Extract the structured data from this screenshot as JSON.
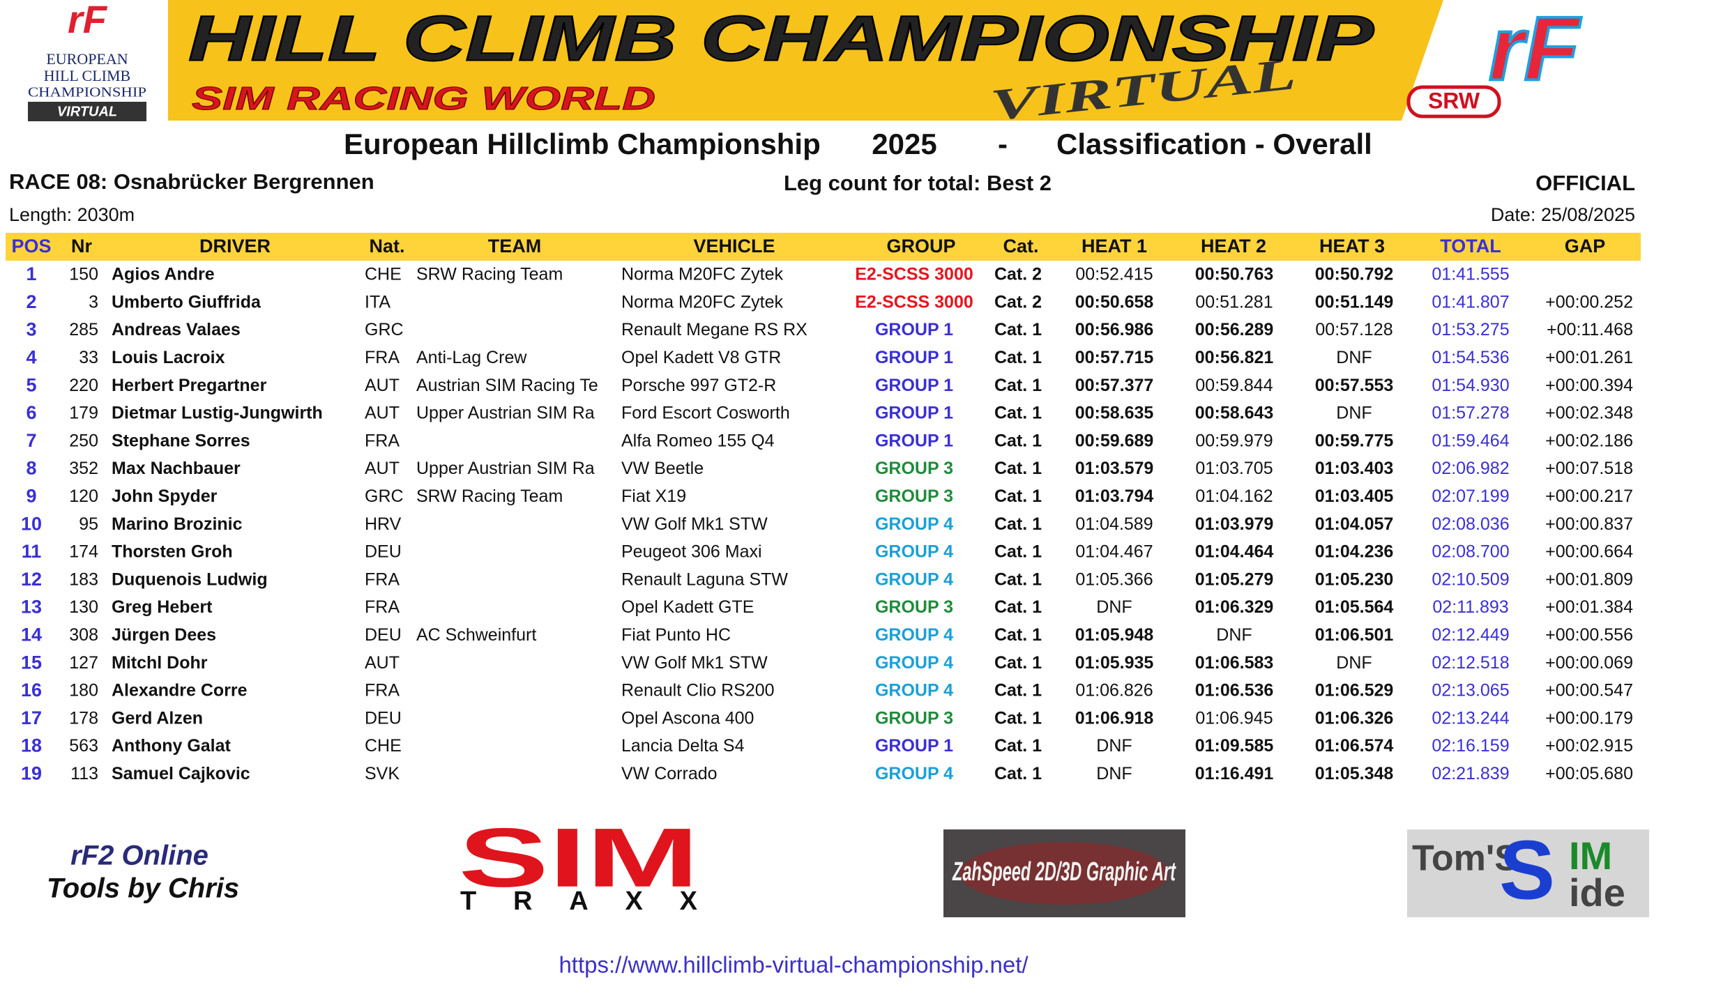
{
  "logos": {
    "left": {
      "mark": "rF",
      "lines": [
        "EUROPEAN",
        "HILL CLIMB",
        "CHAMPIONSHIP"
      ],
      "tag": "VIRTUAL"
    },
    "banner": {
      "title": "HILL CLIMB CHAMPIONSHIP",
      "subtitle": "SIM RACING WORLD",
      "tag": "VIRTUAL"
    },
    "right": {
      "mark": "rF",
      "tag": "SRW"
    }
  },
  "header": {
    "title": [
      "European Hillclimb Championship",
      "2025",
      "-",
      "Classification - Overall"
    ],
    "race": "RACE 08: Osnabrücker Bergrennen",
    "legs": "Leg count for total:  Best 2",
    "status": "OFFICIAL",
    "length": "Length: 2030m",
    "date": "Date: 25/08/2025"
  },
  "table": {
    "columns": [
      "POS",
      "Nr",
      "DRIVER",
      "Nat.",
      "TEAM",
      "VEHICLE",
      "GROUP",
      "Cat.",
      "HEAT 1",
      "HEAT 2",
      "HEAT 3",
      "TOTAL",
      "GAP"
    ],
    "group_colors": {
      "E2-SCSS 3000": "#e8141e",
      "GROUP 1": "#3a2fd6",
      "GROUP 3": "#1e8c3a",
      "GROUP 4": "#1aa0d8"
    },
    "rows": [
      [
        1,
        150,
        "Agios Andre",
        "CHE",
        "SRW Racing Team",
        "Norma M20FC Zytek",
        "E2-SCSS 3000",
        "Cat. 2",
        "00:52.415",
        "00:50.763",
        "00:50.792",
        "01:41.555",
        null
      ],
      [
        2,
        3,
        "Umberto Giuffrida",
        "ITA",
        null,
        "Norma M20FC Zytek",
        "E2-SCSS 3000",
        "Cat. 2",
        "00:50.658",
        "00:51.281",
        "00:51.149",
        "01:41.807",
        "+00:00.252"
      ],
      [
        3,
        285,
        "Andreas Valaes",
        "GRC",
        null,
        "Renault Megane RS RX",
        "GROUP 1",
        "Cat. 1",
        "00:56.986",
        "00:56.289",
        "00:57.128",
        "01:53.275",
        "+00:11.468"
      ],
      [
        4,
        33,
        "Louis Lacroix",
        "FRA",
        "Anti-Lag Crew",
        "Opel Kadett V8 GTR",
        "GROUP 1",
        "Cat. 1",
        "00:57.715",
        "00:56.821",
        "DNF",
        "01:54.536",
        "+00:01.261"
      ],
      [
        5,
        220,
        "Herbert Pregartner",
        "AUT",
        "Austrian SIM Racing Te",
        "Porsche 997 GT2-R",
        "GROUP 1",
        "Cat. 1",
        "00:57.377",
        "00:59.844",
        "00:57.553",
        "01:54.930",
        "+00:00.394"
      ],
      [
        6,
        179,
        "Dietmar Lustig-Jungwirth",
        "AUT",
        "Upper Austrian SIM Ra",
        "Ford Escort Cosworth",
        "GROUP 1",
        "Cat. 1",
        "00:58.635",
        "00:58.643",
        "DNF",
        "01:57.278",
        "+00:02.348"
      ],
      [
        7,
        250,
        "Stephane Sorres",
        "FRA",
        null,
        "Alfa Romeo 155 Q4",
        "GROUP 1",
        "Cat. 1",
        "00:59.689",
        "00:59.979",
        "00:59.775",
        "01:59.464",
        "+00:02.186"
      ],
      [
        8,
        352,
        "Max Nachbauer",
        "AUT",
        "Upper Austrian SIM Ra",
        "VW Beetle",
        "GROUP 3",
        "Cat. 1",
        "01:03.579",
        "01:03.705",
        "01:03.403",
        "02:06.982",
        "+00:07.518"
      ],
      [
        9,
        120,
        "John Spyder",
        "GRC",
        "SRW Racing Team",
        "Fiat X19",
        "GROUP 3",
        "Cat. 1",
        "01:03.794",
        "01:04.162",
        "01:03.405",
        "02:07.199",
        "+00:00.217"
      ],
      [
        10,
        95,
        "Marino Brozinic",
        "HRV",
        null,
        "VW Golf Mk1 STW",
        "GROUP 4",
        "Cat. 1",
        "01:04.589",
        "01:03.979",
        "01:04.057",
        "02:08.036",
        "+00:00.837"
      ],
      [
        11,
        174,
        "Thorsten Groh",
        "DEU",
        null,
        "Peugeot 306 Maxi",
        "GROUP 4",
        "Cat. 1",
        "01:04.467",
        "01:04.464",
        "01:04.236",
        "02:08.700",
        "+00:00.664"
      ],
      [
        12,
        183,
        "Duquenois Ludwig",
        "FRA",
        null,
        "Renault Laguna STW",
        "GROUP 4",
        "Cat. 1",
        "01:05.366",
        "01:05.279",
        "01:05.230",
        "02:10.509",
        "+00:01.809"
      ],
      [
        13,
        130,
        "Greg Hebert",
        "FRA",
        null,
        "Opel Kadett GTE",
        "GROUP 3",
        "Cat. 1",
        "DNF",
        "01:06.329",
        "01:05.564",
        "02:11.893",
        "+00:01.384"
      ],
      [
        14,
        308,
        "Jürgen Dees",
        "DEU",
        "AC Schweinfurt",
        "Fiat Punto HC",
        "GROUP 4",
        "Cat. 1",
        "01:05.948",
        "DNF",
        "01:06.501",
        "02:12.449",
        "+00:00.556"
      ],
      [
        15,
        127,
        "Mitchl Dohr",
        "AUT",
        null,
        "VW Golf Mk1 STW",
        "GROUP 4",
        "Cat. 1",
        "01:05.935",
        "01:06.583",
        "DNF",
        "02:12.518",
        "+00:00.069"
      ],
      [
        16,
        180,
        "Alexandre Corre",
        "FRA",
        null,
        "Renault Clio RS200",
        "GROUP 4",
        "Cat. 1",
        "01:06.826",
        "01:06.536",
        "01:06.529",
        "02:13.065",
        "+00:00.547"
      ],
      [
        17,
        178,
        "Gerd Alzen",
        "DEU",
        null,
        "Opel Ascona 400",
        "GROUP 3",
        "Cat. 1",
        "01:06.918",
        "01:06.945",
        "01:06.326",
        "02:13.244",
        "+00:00.179"
      ],
      [
        18,
        563,
        "Anthony Galat",
        "CHE",
        null,
        "Lancia Delta S4",
        "GROUP 1",
        "Cat. 1",
        "DNF",
        "01:09.585",
        "01:06.574",
        "02:16.159",
        "+00:02.915"
      ],
      [
        19,
        113,
        "Samuel Cajkovic",
        "SVK",
        null,
        "VW Corrado",
        "GROUP 4",
        "Cat. 1",
        "DNF",
        "01:16.491",
        "01:05.348",
        "02:21.839",
        "+00:05.680"
      ]
    ]
  },
  "footer": {
    "sponsors": [
      [
        "rF2 Online",
        "Tools by Chris"
      ],
      [
        "SIM",
        "TRAXX"
      ],
      [
        "ZahSpeed 2D/3D Graphic Art"
      ],
      [
        "Tom'S",
        "IM",
        "ide"
      ]
    ],
    "url": "https://www.hillclimb-virtual-championship.net/"
  }
}
